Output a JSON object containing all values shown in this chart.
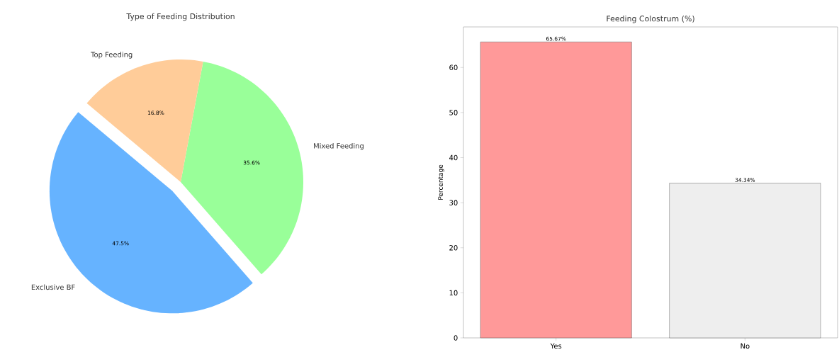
{
  "chart_data": [
    {
      "type": "pie",
      "title": "Type of Feeding Distribution",
      "categories": [
        "Exclusive BF",
        "Mixed Feeding",
        "Top Feeding"
      ],
      "values": [
        47.5,
        35.6,
        16.8
      ],
      "colors": [
        "#66b3ff",
        "#99ff99",
        "#ffcc99"
      ],
      "value_labels": [
        "47.5%",
        "35.6%",
        "16.8%"
      ]
    },
    {
      "type": "bar",
      "title": "Feeding Colostrum (%)",
      "ylabel": "Percentage",
      "categories": [
        "Yes",
        "No"
      ],
      "values": [
        65.67,
        34.34
      ],
      "colors": [
        "#ff9999",
        "#eeeeee"
      ],
      "value_labels": [
        "65.67%",
        "34.34%"
      ],
      "ylim": [
        0,
        69
      ],
      "yticks": [
        0,
        10,
        20,
        30,
        40,
        50,
        60
      ],
      "grid": false
    }
  ]
}
